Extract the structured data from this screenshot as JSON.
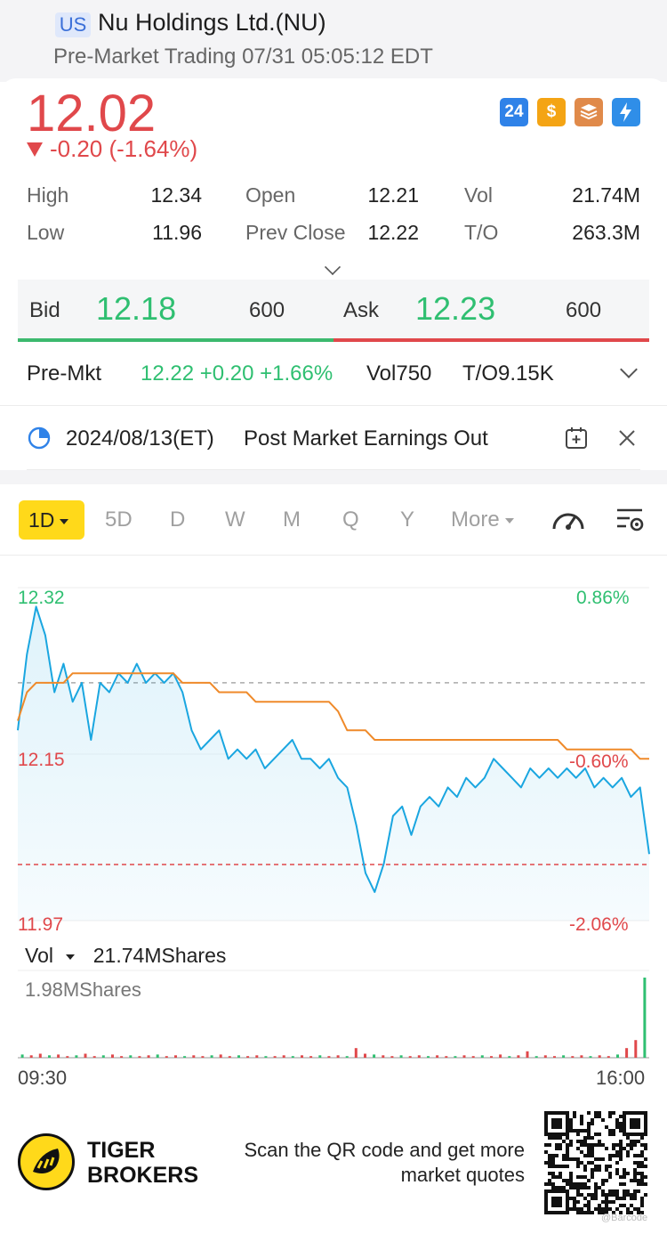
{
  "header": {
    "market_badge": "US",
    "title": "Nu Holdings Ltd.(NU)",
    "subtitle": "Pre-Market Trading 07/31 05:05:12 EDT"
  },
  "quote": {
    "price": "12.02",
    "change": "-0.20 (-1.64%)",
    "color_down": "#e0484b",
    "color_up": "#2fbf71"
  },
  "badges": [
    {
      "icon": "24h-trading-icon",
      "label": "24"
    },
    {
      "icon": "dollar-icon",
      "label": "$"
    },
    {
      "icon": "stack-icon",
      "label": ""
    },
    {
      "icon": "flash-icon",
      "label": ""
    }
  ],
  "stats": {
    "high_label": "High",
    "high": "12.34",
    "open_label": "Open",
    "open": "12.21",
    "vol_label": "Vol",
    "vol": "21.74M",
    "low_label": "Low",
    "low": "11.96",
    "prev_close_label": "Prev Close",
    "prev_close": "12.22",
    "to_label": "T/O",
    "to": "263.3M"
  },
  "bid_ask": {
    "bid_label": "Bid",
    "bid_price": "12.18",
    "bid_qty": "600",
    "ask_label": "Ask",
    "ask_price": "12.23",
    "ask_qty": "600"
  },
  "premarket": {
    "label": "Pre-Mkt",
    "values": "12.22 +0.20 +1.66%",
    "vol": "Vol750",
    "to": "T/O9.15K"
  },
  "earnings": {
    "date": "2024/08/13(ET)",
    "text": "Post Market Earnings Out"
  },
  "tabs": {
    "active": "1D",
    "items": [
      "5D",
      "D",
      "W",
      "M",
      "Q",
      "Y"
    ],
    "more": "More"
  },
  "chart_data": {
    "type": "line",
    "y_labels": {
      "top": "12.32",
      "mid": "12.15",
      "bottom": "11.97"
    },
    "pct_labels": {
      "top": "0.86%",
      "mid": "-0.60%",
      "bottom": "-2.06%"
    },
    "ylim": [
      11.97,
      12.32
    ],
    "prev_close": 12.22,
    "x_labels": {
      "start": "09:30",
      "end": "16:00"
    },
    "series": [
      {
        "color": "#1aa6e0",
        "values": [
          12.17,
          12.25,
          12.3,
          12.27,
          12.21,
          12.24,
          12.2,
          12.22,
          12.16,
          12.22,
          12.21,
          12.23,
          12.22,
          12.24,
          12.22,
          12.23,
          12.22,
          12.23,
          12.21,
          12.17,
          12.15,
          12.16,
          12.17,
          12.14,
          12.15,
          12.14,
          12.15,
          12.13,
          12.14,
          12.15,
          12.16,
          12.14,
          12.14,
          12.13,
          12.14,
          12.12,
          12.11,
          12.07,
          12.02,
          12.0,
          12.03,
          12.08,
          12.09,
          12.06,
          12.09,
          12.1,
          12.09,
          12.11,
          12.1,
          12.12,
          12.11,
          12.12,
          12.14,
          12.13,
          12.12,
          12.11,
          12.13,
          12.12,
          12.13,
          12.12,
          12.13,
          12.12,
          12.13,
          12.11,
          12.12,
          12.11,
          12.12,
          12.1,
          12.11,
          12.04
        ]
      },
      {
        "color": "#ef8a2a",
        "values": [
          12.18,
          12.21,
          12.22,
          12.22,
          12.22,
          12.22,
          12.23,
          12.23,
          12.23,
          12.23,
          12.23,
          12.23,
          12.23,
          12.23,
          12.23,
          12.23,
          12.23,
          12.23,
          12.22,
          12.22,
          12.22,
          12.22,
          12.21,
          12.21,
          12.21,
          12.21,
          12.2,
          12.2,
          12.2,
          12.2,
          12.2,
          12.2,
          12.2,
          12.2,
          12.2,
          12.19,
          12.17,
          12.17,
          12.17,
          12.16,
          12.16,
          12.16,
          12.16,
          12.16,
          12.16,
          12.16,
          12.16,
          12.16,
          12.16,
          12.16,
          12.16,
          12.16,
          12.16,
          12.16,
          12.16,
          12.16,
          12.16,
          12.16,
          12.16,
          12.16,
          12.15,
          12.15,
          12.15,
          12.15,
          12.15,
          12.15,
          12.15,
          12.15,
          12.14,
          12.14
        ]
      }
    ]
  },
  "volume": {
    "label": "Vol",
    "total": "21.74MShares",
    "max": "1.98MShares",
    "bars": [
      0.04,
      0.03,
      0.05,
      0.03,
      0.04,
      0.02,
      0.03,
      0.05,
      0.02,
      0.03,
      0.04,
      0.02,
      0.03,
      0.02,
      0.03,
      0.04,
      0.02,
      0.03,
      0.02,
      0.03,
      0.02,
      0.03,
      0.04,
      0.02,
      0.03,
      0.02,
      0.03,
      0.02,
      0.02,
      0.03,
      0.02,
      0.03,
      0.02,
      0.03,
      0.02,
      0.03,
      0.02,
      0.12,
      0.05,
      0.04,
      0.03,
      0.02,
      0.03,
      0.02,
      0.03,
      0.02,
      0.03,
      0.02,
      0.02,
      0.03,
      0.02,
      0.03,
      0.02,
      0.04,
      0.02,
      0.03,
      0.08,
      0.02,
      0.03,
      0.02,
      0.03,
      0.02,
      0.03,
      0.02,
      0.03,
      0.02,
      0.04,
      0.12,
      0.22,
      1.0
    ]
  },
  "footer": {
    "brand_line1": "TIGER",
    "brand_line2": "BROKERS",
    "scan_text": "Scan the QR code and get more market quotes",
    "watermark": "@Barcode"
  }
}
